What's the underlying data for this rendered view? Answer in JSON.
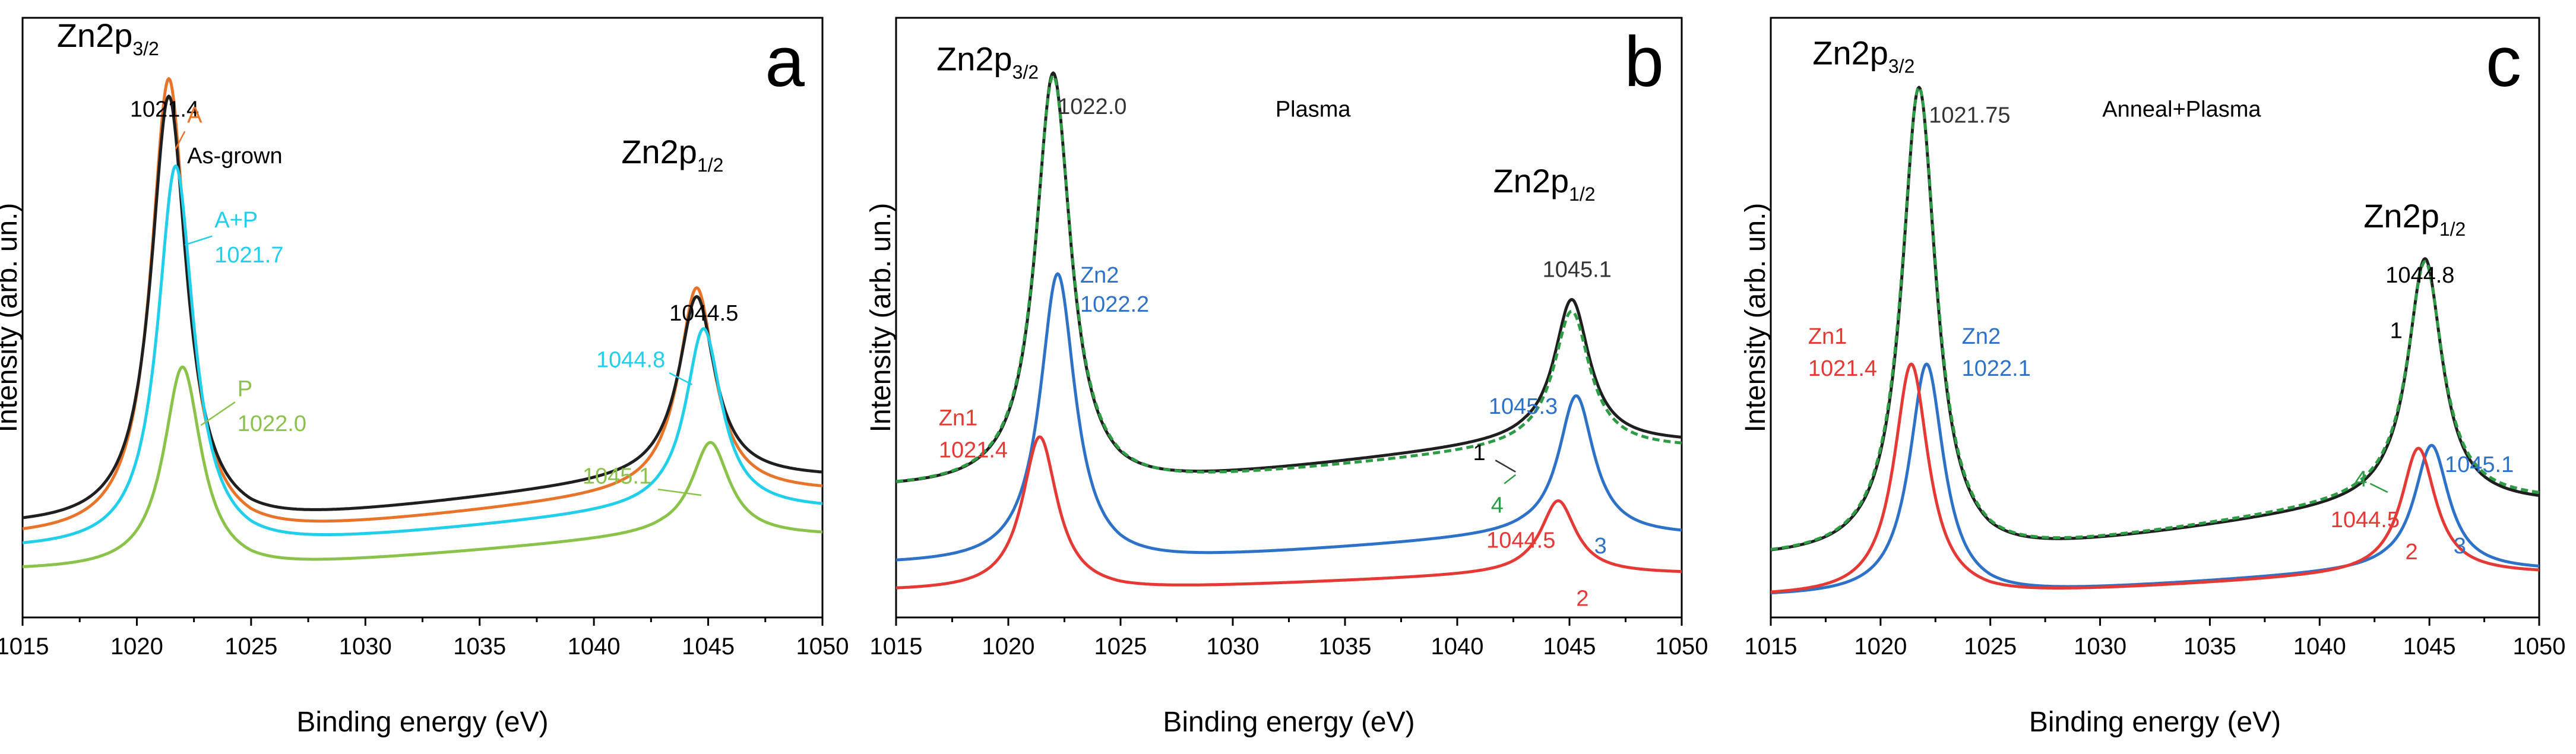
{
  "chart_data": [
    {
      "type": "line",
      "panel_label": "a",
      "xlabel": "Binding energy (eV)",
      "ylabel": "Intensity (arb. un.)",
      "xlim": [
        1015,
        1050
      ],
      "xticks": [
        1015,
        1020,
        1025,
        1030,
        1035,
        1040,
        1045,
        1050
      ],
      "ylim": [
        0,
        1
      ],
      "peak_labels": [
        {
          "main": "Zn2p",
          "sub": "3/2",
          "x": 1016.5,
          "y": 0.95
        },
        {
          "main": "Zn2p",
          "sub": "1/2",
          "x": 1041.2,
          "y": 0.75
        }
      ],
      "series": [
        {
          "name": "A",
          "color": "#E8742A",
          "base": 0.105,
          "peaks": [
            {
              "c": 1021.4,
              "h": 0.79,
              "w": 0.95
            },
            {
              "c": 1044.5,
              "h": 0.35,
              "w": 0.95
            }
          ],
          "bg": [
            {
              "x1": 1025,
              "x2": 1043,
              "h": 0.08
            }
          ]
        },
        {
          "name": "As-grown",
          "color": "#1F1F1F",
          "base": 0.125,
          "peaks": [
            {
              "c": 1021.4,
              "h": 0.74,
              "w": 0.95
            },
            {
              "c": 1044.5,
              "h": 0.31,
              "w": 0.95
            }
          ],
          "bg": [
            {
              "x1": 1025,
              "x2": 1043,
              "h": 0.085
            }
          ]
        },
        {
          "name": "A+P",
          "color": "#22CFEA",
          "base": 0.085,
          "peaks": [
            {
              "c": 1021.7,
              "h": 0.66,
              "w": 0.95
            },
            {
              "c": 1044.8,
              "h": 0.31,
              "w": 0.95
            }
          ],
          "bg": [
            {
              "x1": 1025,
              "x2": 1043,
              "h": 0.07
            }
          ]
        },
        {
          "name": "P",
          "color": "#8BC34A",
          "base": 0.05,
          "peaks": [
            {
              "c": 1022.0,
              "h": 0.35,
              "w": 1.0
            },
            {
              "c": 1045.1,
              "h": 0.16,
              "w": 1.0
            }
          ],
          "bg": [
            {
              "x1": 1025,
              "x2": 1043,
              "h": 0.06
            }
          ]
        }
      ],
      "annotations": [
        {
          "text": "1021.4",
          "color": "#000000",
          "x": 1019.7,
          "y": 0.83
        },
        {
          "text": "A",
          "color": "#E8742A",
          "x": 1022.2,
          "y": 0.82,
          "size": 46
        },
        {
          "text": "As-grown",
          "color": "#000000",
          "x": 1022.2,
          "y": 0.75,
          "size": 44
        },
        {
          "text": "A+P",
          "color": "#22CFEA",
          "x": 1023.4,
          "y": 0.64,
          "size": 44
        },
        {
          "text": "1021.7",
          "color": "#22CFEA",
          "x": 1023.4,
          "y": 0.58
        },
        {
          "text": "P",
          "color": "#8BC34A",
          "x": 1024.4,
          "y": 0.35,
          "size": 48
        },
        {
          "text": "1022.0",
          "color": "#8BC34A",
          "x": 1024.4,
          "y": 0.29
        },
        {
          "text": "1044.5",
          "color": "#000000",
          "x": 1043.3,
          "y": 0.48
        },
        {
          "text": "1044.8",
          "color": "#22CFEA",
          "x": 1040.1,
          "y": 0.4
        },
        {
          "text": "1045.1",
          "color": "#8BC34A",
          "x": 1039.5,
          "y": 0.2
        }
      ],
      "leaders": [
        {
          "color": "#E8742A",
          "from": [
            1022.1,
            0.805
          ],
          "to": [
            1021.7,
            0.775
          ]
        },
        {
          "color": "#22CFEA",
          "from": [
            1023.3,
            0.625
          ],
          "to": [
            1022.1,
            0.61
          ]
        },
        {
          "color": "#8BC34A",
          "from": [
            1024.3,
            0.34
          ],
          "to": [
            1022.8,
            0.3
          ]
        },
        {
          "color": "#22CFEA",
          "from": [
            1043.3,
            0.39
          ],
          "to": [
            1044.3,
            0.37
          ]
        },
        {
          "color": "#8BC34A",
          "from": [
            1042.8,
            0.19
          ],
          "to": [
            1044.7,
            0.18
          ]
        }
      ]
    },
    {
      "type": "line",
      "panel_label": "b",
      "title": "Plasma",
      "xlabel": "Binding energy (eV)",
      "ylabel": "Intensity (arb. un.)",
      "xlim": [
        1015,
        1050
      ],
      "xticks": [
        1015,
        1020,
        1025,
        1030,
        1035,
        1040,
        1045,
        1050
      ],
      "ylim": [
        0,
        1
      ],
      "peak_labels": [
        {
          "main": "Zn2p",
          "sub": "3/2",
          "x": 1016.8,
          "y": 0.91
        },
        {
          "main": "Zn2p",
          "sub": "1/2",
          "x": 1041.6,
          "y": 0.7
        }
      ],
      "series": [
        {
          "name": "1",
          "color": "#1F1F1F",
          "base": 0.19,
          "peaks": [
            {
              "c": 1022.0,
              "h": 0.715,
              "w": 0.95
            },
            {
              "c": 1045.1,
              "h": 0.245,
              "w": 0.95
            }
          ],
          "bg": [
            {
              "x1": 1025,
              "x2": 1043,
              "h": 0.08
            }
          ]
        },
        {
          "name": "4",
          "color": "#2E9B45",
          "dashed": true,
          "base": 0.19,
          "peaks": [
            {
              "c": 1022.0,
              "h": 0.71,
              "w": 0.97
            },
            {
              "c": 1045.1,
              "h": 0.235,
              "w": 0.97
            }
          ],
          "bg": [
            {
              "x1": 1025,
              "x2": 1043,
              "h": 0.07
            }
          ]
        },
        {
          "name": "3",
          "color": "#2E72C8",
          "base": 0.06,
          "peaks": [
            {
              "c": 1022.2,
              "h": 0.5,
              "w": 0.95
            },
            {
              "c": 1045.3,
              "h": 0.24,
              "w": 0.95
            }
          ],
          "bg": [
            {
              "x1": 1025,
              "x2": 1043,
              "h": 0.05
            }
          ]
        },
        {
          "name": "2",
          "color": "#E53935",
          "base": 0.015,
          "peaks": [
            {
              "c": 1021.4,
              "h": 0.265,
              "w": 0.95
            },
            {
              "c": 1044.5,
              "h": 0.125,
              "w": 0.95
            }
          ],
          "bg": [
            {
              "x1": 1025,
              "x2": 1043,
              "h": 0.03
            }
          ]
        }
      ],
      "annotations": [
        {
          "text": "1022.0",
          "color": "#333333",
          "x": 1022.2,
          "y": 0.835
        },
        {
          "text": "Plasma",
          "color": "#000000",
          "x": 1031.9,
          "y": 0.83,
          "size": 46
        },
        {
          "text": "Zn2",
          "color": "#2E72C8",
          "x": 1023.2,
          "y": 0.545
        },
        {
          "text": "1022.2",
          "color": "#2E72C8",
          "x": 1023.2,
          "y": 0.495
        },
        {
          "text": "Zn1",
          "color": "#E53935",
          "x": 1016.9,
          "y": 0.3
        },
        {
          "text": "1021.4",
          "color": "#E53935",
          "x": 1016.9,
          "y": 0.245
        },
        {
          "text": "1045.1",
          "color": "#333333",
          "x": 1043.8,
          "y": 0.555
        },
        {
          "text": "1045.3",
          "color": "#2E72C8",
          "x": 1041.4,
          "y": 0.32
        },
        {
          "text": "1044.5",
          "color": "#E53935",
          "x": 1041.3,
          "y": 0.09
        },
        {
          "text": "1",
          "color": "#000000",
          "x": 1040.7,
          "y": 0.24,
          "size": 46
        },
        {
          "text": "4",
          "color": "#2E9B45",
          "x": 1041.5,
          "y": 0.15,
          "size": 46
        },
        {
          "text": "3",
          "color": "#2E72C8",
          "x": 1046.1,
          "y": 0.08,
          "size": 48
        },
        {
          "text": "2",
          "color": "#E53935",
          "x": 1045.3,
          "y": -0.01,
          "size": 48
        }
      ],
      "leaders": [
        {
          "color": "#333333",
          "from": [
            1041.7,
            0.24
          ],
          "to": [
            1042.6,
            0.22
          ]
        },
        {
          "color": "#2E9B45",
          "from": [
            1042.1,
            0.2
          ],
          "to": [
            1042.6,
            0.215
          ]
        }
      ]
    },
    {
      "type": "line",
      "panel_label": "c",
      "title": "Anneal+Plasma",
      "xlabel": "Binding energy (eV)",
      "ylabel": "Intensity (arb. un.)",
      "xlim": [
        1015,
        1050
      ],
      "xticks": [
        1015,
        1020,
        1025,
        1030,
        1035,
        1040,
        1045,
        1050
      ],
      "ylim": [
        0,
        1
      ],
      "peak_labels": [
        {
          "main": "Zn2p",
          "sub": "3/2",
          "x": 1016.9,
          "y": 0.92
        },
        {
          "main": "Zn2p",
          "sub": "1/2",
          "x": 1042.0,
          "y": 0.64
        }
      ],
      "series": [
        {
          "name": "1",
          "color": "#1F1F1F",
          "base": 0.07,
          "peaks": [
            {
              "c": 1021.75,
              "h": 0.81,
              "w": 0.95
            },
            {
              "c": 1044.8,
              "h": 0.42,
              "w": 0.95
            }
          ],
          "bg": [
            {
              "x1": 1025,
              "x2": 1043,
              "h": 0.095
            }
          ]
        },
        {
          "name": "4",
          "color": "#2E9B45",
          "dashed": true,
          "base": 0.07,
          "peaks": [
            {
              "c": 1021.75,
              "h": 0.81,
              "w": 0.97
            },
            {
              "c": 1044.8,
              "h": 0.41,
              "w": 0.97
            }
          ],
          "bg": [
            {
              "x1": 1025,
              "x2": 1043,
              "h": 0.1
            }
          ]
        },
        {
          "name": "3",
          "color": "#2E72C8",
          "base": 0.005,
          "peaks": [
            {
              "c": 1022.1,
              "h": 0.4,
              "w": 0.95
            },
            {
              "c": 1045.1,
              "h": 0.215,
              "w": 0.95
            }
          ],
          "bg": [
            {
              "x1": 1025,
              "x2": 1043,
              "h": 0.045
            }
          ]
        },
        {
          "name": "2",
          "color": "#E53935",
          "base": 0.005,
          "peaks": [
            {
              "c": 1021.4,
              "h": 0.4,
              "w": 0.95
            },
            {
              "c": 1044.5,
              "h": 0.215,
              "w": 0.95
            }
          ],
          "bg": [
            {
              "x1": 1025,
              "x2": 1043,
              "h": 0.04
            }
          ]
        }
      ],
      "annotations": [
        {
          "text": "1021.75",
          "color": "#333333",
          "x": 1022.2,
          "y": 0.82
        },
        {
          "text": "Anneal+Plasma",
          "color": "#000000",
          "x": 1030.1,
          "y": 0.83,
          "size": 46
        },
        {
          "text": "Zn1",
          "color": "#E53935",
          "x": 1016.7,
          "y": 0.44
        },
        {
          "text": "1021.4",
          "color": "#E53935",
          "x": 1016.7,
          "y": 0.385
        },
        {
          "text": "Zn2",
          "color": "#2E72C8",
          "x": 1023.7,
          "y": 0.44
        },
        {
          "text": "1022.1",
          "color": "#2E72C8",
          "x": 1023.7,
          "y": 0.385
        },
        {
          "text": "1044.8",
          "color": "#000000",
          "x": 1043.0,
          "y": 0.545
        },
        {
          "text": "1",
          "color": "#000000",
          "x": 1043.2,
          "y": 0.45,
          "size": 48
        },
        {
          "text": "4",
          "color": "#2E9B45",
          "x": 1041.6,
          "y": 0.195,
          "size": 46
        },
        {
          "text": "1045.1",
          "color": "#2E72C8",
          "x": 1045.7,
          "y": 0.22
        },
        {
          "text": "1044.5",
          "color": "#E53935",
          "x": 1040.5,
          "y": 0.125
        },
        {
          "text": "2",
          "color": "#E53935",
          "x": 1043.9,
          "y": 0.07,
          "size": 48
        },
        {
          "text": "3",
          "color": "#2E72C8",
          "x": 1046.1,
          "y": 0.08,
          "size": 48
        }
      ],
      "leaders": [
        {
          "color": "#2E9B45",
          "from": [
            1042.3,
            0.2
          ],
          "to": [
            1043.1,
            0.185
          ]
        }
      ]
    }
  ]
}
